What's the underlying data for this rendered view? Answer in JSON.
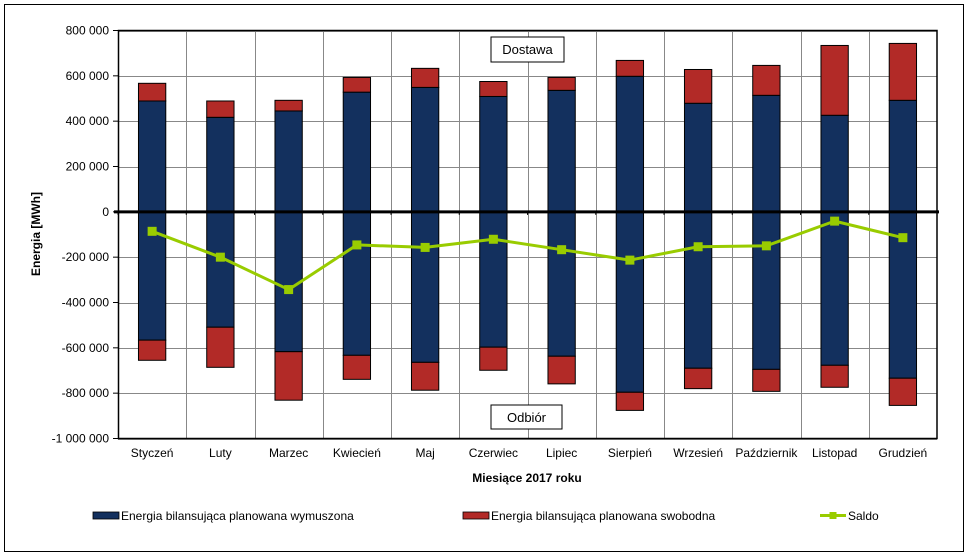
{
  "chart_data": {
    "type": "bar",
    "subtype": "stacked-bar-with-line",
    "title": "",
    "xlabel": "Miesiące 2017 roku",
    "ylabel": "Energia [MWh]",
    "ylim": [
      -1000000,
      800000
    ],
    "ytick_step": 200000,
    "yticks": [
      "800 000",
      "600 000",
      "400 000",
      "200 000",
      "0",
      "-200 000",
      "-400 000",
      "-600 000",
      "-800 000",
      "-1 000 000"
    ],
    "grid": true,
    "legend_position": "bottom",
    "categories": [
      "Styczeń",
      "Luty",
      "Marzec",
      "Kwiecień",
      "Maj",
      "Czerwiec",
      "Lipiec",
      "Sierpień",
      "Wrzesień",
      "Październik",
      "Listopad",
      "Grudzień"
    ],
    "series": [
      {
        "name": "Energia bilansująca planowana wymuszona",
        "kind": "bar",
        "color": "#13305e",
        "values_positive": [
          489000,
          417000,
          445000,
          528000,
          549000,
          509000,
          536000,
          598000,
          479000,
          514000,
          426000,
          492000
        ],
        "values_negative": [
          -566000,
          -509000,
          -617000,
          -633000,
          -664000,
          -597000,
          -637000,
          -796000,
          -690000,
          -695000,
          -677000,
          -734000
        ]
      },
      {
        "name": "Energia bilansująca planowana swobodna",
        "kind": "bar",
        "color": "#b22a27",
        "values_positive": [
          78000,
          72000,
          47000,
          65000,
          84000,
          66000,
          57000,
          70000,
          149000,
          132000,
          308000,
          251000
        ],
        "values_negative": [
          -89000,
          -177000,
          -214000,
          -106000,
          -123000,
          -102000,
          -122000,
          -80000,
          -90000,
          -97000,
          -97000,
          -120000
        ]
      },
      {
        "name": "Saldo",
        "kind": "line",
        "color": "#99cc00",
        "values": [
          -86000,
          -200000,
          -343000,
          -146000,
          -157000,
          -121000,
          -167000,
          -213000,
          -154000,
          -150000,
          -41000,
          -114000
        ]
      }
    ],
    "annotations": [
      {
        "text": "Dostawa",
        "anchor": "top-center"
      },
      {
        "text": "Odbiór",
        "anchor": "bottom-center"
      }
    ]
  }
}
